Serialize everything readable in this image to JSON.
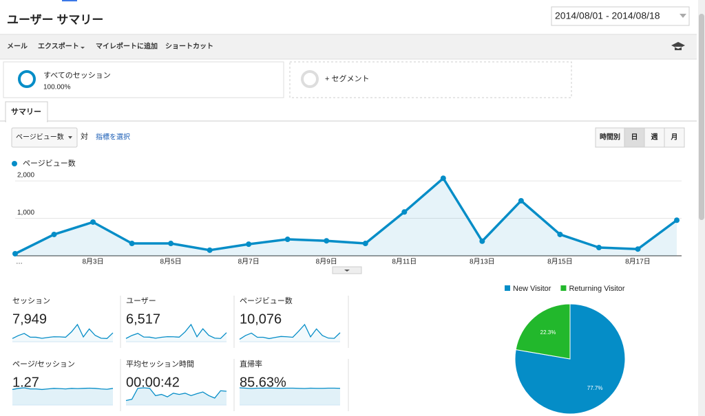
{
  "header": {
    "title": "ユーザー サマリー",
    "date_range": "2014/08/01 - 2014/08/18"
  },
  "toolbar": [
    "メール",
    "エクスポート",
    "マイレポートに追加",
    "ショートカット"
  ],
  "segments": [
    {
      "label": "すべてのセッション",
      "share": "100.00%"
    },
    {
      "label": "+ セグメント"
    }
  ],
  "tabs": [
    "サマリー"
  ],
  "controls": {
    "metric_select": "ページビュー数",
    "versus": "対",
    "choose_metric": "指標を選択",
    "granularity": [
      "時間別",
      "日",
      "週",
      "月"
    ],
    "selected": "日"
  },
  "chart_data": [
    {
      "type": "line",
      "categories": [
        "…",
        null,
        "8月3日",
        null,
        "8月5日",
        null,
        "8月7日",
        null,
        "8月9日",
        null,
        "8月11日",
        null,
        "8月13日",
        null,
        "8月15日",
        null,
        "8月17日",
        null
      ],
      "series": [
        {
          "name": "ページビュー数",
          "color": "#058dc7",
          "values": [
            55,
            570,
            900,
            330,
            330,
            150,
            310,
            440,
            400,
            330,
            1170,
            2070,
            390,
            1470,
            570,
            220,
            180,
            950
          ]
        }
      ],
      "ylim": [
        0,
        2240
      ],
      "yticks": [
        {
          "value": 1000,
          "label": "1,000"
        },
        {
          "value": 2000,
          "label": "2,000"
        }
      ],
      "grid": true
    },
    {
      "type": "pie",
      "categories": [
        "New Visitor",
        "Returning Visitor"
      ],
      "values": [
        77.7,
        22.3
      ],
      "value_labels": [
        "77.7%",
        "22.3%"
      ],
      "colors": [
        "#058dc7",
        "#22b82c"
      ]
    }
  ],
  "metrics": [
    {
      "label": "セッション",
      "value": "7,949",
      "spark": [
        120,
        420,
        640,
        260,
        250,
        140,
        230,
        300,
        290,
        250,
        800,
        1550,
        280,
        1100,
        440,
        150,
        120,
        700
      ]
    },
    {
      "label": "ユーザー",
      "value": "6,517",
      "spark": [
        100,
        350,
        520,
        220,
        210,
        120,
        200,
        250,
        240,
        210,
        650,
        1250,
        240,
        900,
        360,
        130,
        100,
        580
      ]
    },
    {
      "label": "ページビュー数",
      "value": "10,076",
      "spark": [
        55,
        570,
        900,
        330,
        330,
        150,
        310,
        440,
        400,
        330,
        1170,
        2070,
        390,
        1470,
        570,
        220,
        180,
        950
      ]
    },
    {
      "label": "ページ/セッション",
      "value": "1.27",
      "spark": [
        1.2,
        1.3,
        1.35,
        1.25,
        1.25,
        1.2,
        1.25,
        1.3,
        1.28,
        1.25,
        1.3,
        1.28,
        1.3,
        1.32,
        1.3,
        1.25,
        1.22,
        1.3
      ]
    },
    {
      "label": "平均セッション時間",
      "value": "00:00:42",
      "spark": [
        10,
        15,
        60,
        62,
        60,
        30,
        35,
        25,
        40,
        35,
        40,
        30,
        38,
        45,
        30,
        20,
        50,
        48
      ]
    },
    {
      "label": "直帰率",
      "value": "85.63%",
      "spark": [
        88,
        86,
        84,
        86,
        86,
        87,
        86,
        85,
        86,
        86,
        85,
        84,
        86,
        85,
        85,
        86,
        86,
        85
      ]
    }
  ]
}
